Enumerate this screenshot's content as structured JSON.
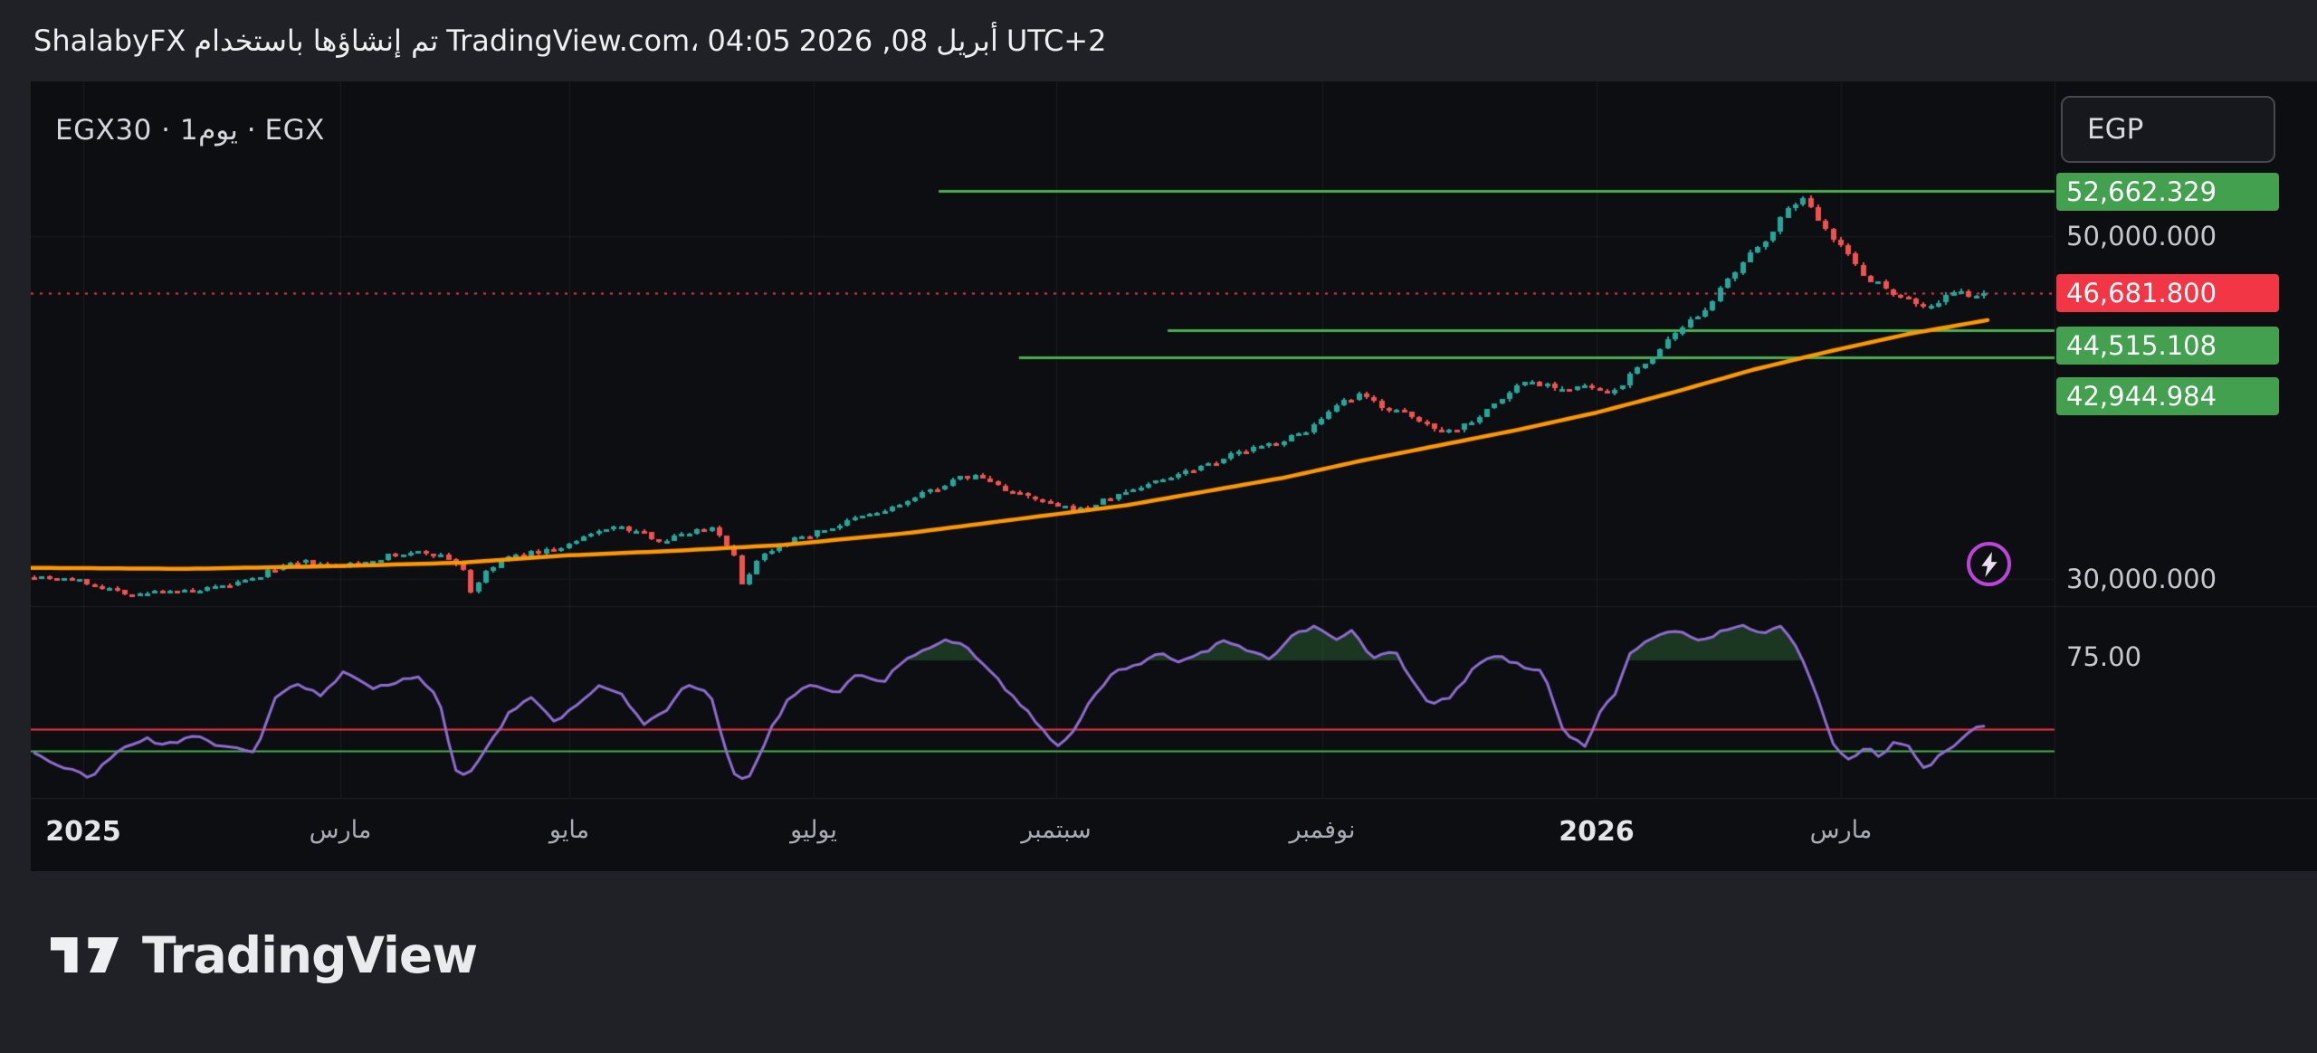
{
  "header": {
    "parts": [
      "ShalabyFX",
      "تم إنشاؤها باستخدام",
      "TradingView.com،",
      "04:05",
      "2026 ,08",
      "أبريل",
      "UTC+2"
    ]
  },
  "chart": {
    "symbol_line": "EGX30 · 1يوم · EGX",
    "currency_button": "EGP",
    "price_scale": {
      "resistance": "52,662.329",
      "fifty_k": "50,000.000",
      "last": "46,681.800",
      "support1": "44,515.108",
      "support2": "42,944.984",
      "thirty_k": "30,000.000",
      "rsi_level": "75.00"
    }
  },
  "footer": {
    "brand": "TradingView"
  },
  "colors": {
    "up": "#26a69a",
    "down": "#ef5350",
    "ma": "#ff9800",
    "level_green": "#4caf50",
    "last_price_red": "#f23645",
    "rsi_purple": "#8e6cd0",
    "rsi_red_line": "#f23645",
    "rsi_green_line": "#4caf50",
    "overbought_fill": "rgba(67,160,71,0.28)",
    "grid": "rgba(255,255,255,0.05)",
    "divider": "rgba(255,255,255,0.08)",
    "chart_bg": "#0d0e12"
  },
  "chart_data": {
    "type": "candlestick",
    "title": "EGX30 1D (EGX)",
    "currency": "EGP",
    "last_price": 46681.8,
    "num_candles": 260,
    "y_ticks_main": [
      {
        "value": 50000,
        "label": "50,000.000"
      },
      {
        "value": 30000,
        "label": "30,000.000"
      }
    ],
    "levels": [
      {
        "value": 52662.329,
        "label": "52,662.329",
        "start_f": 0.464
      },
      {
        "value": 44515.108,
        "label": "44,515.108",
        "start_f": 0.581
      },
      {
        "value": 42944.984,
        "label": "42,944.984",
        "start_f": 0.505
      }
    ],
    "x_ticks": [
      {
        "label": "2025",
        "f": 0.027,
        "major": true
      },
      {
        "label": "مارس",
        "f": 0.158
      },
      {
        "label": "مايو",
        "f": 0.275
      },
      {
        "label": "يوليو",
        "f": 0.4
      },
      {
        "label": "سبتمبر",
        "f": 0.524
      },
      {
        "label": "نوفمبر",
        "f": 0.66
      },
      {
        "label": "2026",
        "f": 0.8,
        "major": true
      },
      {
        "label": "مارس",
        "f": 0.925
      }
    ],
    "close_path": [
      [
        0,
        30170
      ],
      [
        0.018,
        30000
      ],
      [
        0.037,
        29480
      ],
      [
        0.052,
        29050
      ],
      [
        0.067,
        29400
      ],
      [
        0.082,
        29220
      ],
      [
        0.097,
        29570
      ],
      [
        0.113,
        30000
      ],
      [
        0.124,
        30690
      ],
      [
        0.139,
        30950
      ],
      [
        0.154,
        30690
      ],
      [
        0.169,
        31030
      ],
      [
        0.184,
        31380
      ],
      [
        0.199,
        31550
      ],
      [
        0.211,
        31290
      ],
      [
        0.22,
        30600
      ],
      [
        0.224,
        29220
      ],
      [
        0.23,
        30170
      ],
      [
        0.241,
        31210
      ],
      [
        0.256,
        31550
      ],
      [
        0.271,
        31810
      ],
      [
        0.286,
        32590
      ],
      [
        0.295,
        33100
      ],
      [
        0.309,
        32760
      ],
      [
        0.323,
        32240
      ],
      [
        0.335,
        32760
      ],
      [
        0.348,
        33020
      ],
      [
        0.358,
        31720
      ],
      [
        0.363,
        29650
      ],
      [
        0.371,
        31210
      ],
      [
        0.383,
        32070
      ],
      [
        0.396,
        32500
      ],
      [
        0.409,
        33020
      ],
      [
        0.422,
        33540
      ],
      [
        0.436,
        33970
      ],
      [
        0.449,
        34570
      ],
      [
        0.461,
        35260
      ],
      [
        0.475,
        35860
      ],
      [
        0.484,
        36030
      ],
      [
        0.496,
        35340
      ],
      [
        0.509,
        34740
      ],
      [
        0.522,
        34310
      ],
      [
        0.534,
        33970
      ],
      [
        0.547,
        34480
      ],
      [
        0.56,
        35090
      ],
      [
        0.573,
        35600
      ],
      [
        0.588,
        36210
      ],
      [
        0.603,
        36810
      ],
      [
        0.619,
        37410
      ],
      [
        0.634,
        37840
      ],
      [
        0.647,
        38360
      ],
      [
        0.66,
        39220
      ],
      [
        0.671,
        40260
      ],
      [
        0.68,
        40690
      ],
      [
        0.693,
        40000
      ],
      [
        0.703,
        39570
      ],
      [
        0.715,
        38960
      ],
      [
        0.727,
        38620
      ],
      [
        0.739,
        39390
      ],
      [
        0.751,
        40340
      ],
      [
        0.764,
        41550
      ],
      [
        0.776,
        41380
      ],
      [
        0.786,
        41030
      ],
      [
        0.798,
        41210
      ],
      [
        0.807,
        40690
      ],
      [
        0.816,
        41550
      ],
      [
        0.826,
        42590
      ],
      [
        0.836,
        43620
      ],
      [
        0.845,
        44480
      ],
      [
        0.854,
        45520
      ],
      [
        0.863,
        46550
      ],
      [
        0.872,
        47760
      ],
      [
        0.881,
        48970
      ],
      [
        0.89,
        50170
      ],
      [
        0.898,
        51210
      ],
      [
        0.905,
        52300
      ],
      [
        0.911,
        51640
      ],
      [
        0.917,
        50860
      ],
      [
        0.923,
        50000
      ],
      [
        0.93,
        48970
      ],
      [
        0.936,
        48100
      ],
      [
        0.943,
        47410
      ],
      [
        0.951,
        46900
      ],
      [
        0.958,
        46550
      ],
      [
        0.966,
        46030
      ],
      [
        0.973,
        45860
      ],
      [
        0.979,
        46380
      ],
      [
        0.985,
        46720
      ],
      [
        0.993,
        46550
      ],
      [
        1,
        46682
      ]
    ],
    "ma_path": [
      [
        0,
        30650
      ],
      [
        0.08,
        30590
      ],
      [
        0.16,
        30760
      ],
      [
        0.22,
        30950
      ],
      [
        0.275,
        31380
      ],
      [
        0.33,
        31650
      ],
      [
        0.384,
        31980
      ],
      [
        0.45,
        32700
      ],
      [
        0.513,
        33620
      ],
      [
        0.56,
        34300
      ],
      [
        0.6,
        35100
      ],
      [
        0.64,
        35900
      ],
      [
        0.68,
        36900
      ],
      [
        0.72,
        37800
      ],
      [
        0.76,
        38700
      ],
      [
        0.8,
        39700
      ],
      [
        0.84,
        40900
      ],
      [
        0.88,
        42200
      ],
      [
        0.92,
        43300
      ],
      [
        0.96,
        44300
      ],
      [
        1,
        45100
      ]
    ],
    "rsi": {
      "upper_band": 75,
      "upper_band_label": "75.00",
      "red_line": 37,
      "green_line": 25,
      "path": [
        [
          0,
          24
        ],
        [
          0.014,
          16
        ],
        [
          0.029,
          10
        ],
        [
          0.041,
          24
        ],
        [
          0.056,
          32
        ],
        [
          0.067,
          28
        ],
        [
          0.082,
          34
        ],
        [
          0.097,
          27
        ],
        [
          0.113,
          24
        ],
        [
          0.124,
          56
        ],
        [
          0.135,
          62
        ],
        [
          0.147,
          55
        ],
        [
          0.158,
          68
        ],
        [
          0.173,
          60
        ],
        [
          0.184,
          63
        ],
        [
          0.196,
          66
        ],
        [
          0.207,
          56
        ],
        [
          0.215,
          16
        ],
        [
          0.222,
          12
        ],
        [
          0.233,
          28
        ],
        [
          0.245,
          48
        ],
        [
          0.256,
          54
        ],
        [
          0.267,
          42
        ],
        [
          0.279,
          50
        ],
        [
          0.29,
          62
        ],
        [
          0.301,
          56
        ],
        [
          0.313,
          40
        ],
        [
          0.324,
          48
        ],
        [
          0.335,
          62
        ],
        [
          0.347,
          56
        ],
        [
          0.358,
          12
        ],
        [
          0.366,
          8
        ],
        [
          0.377,
          36
        ],
        [
          0.388,
          56
        ],
        [
          0.4,
          62
        ],
        [
          0.411,
          56
        ],
        [
          0.422,
          68
        ],
        [
          0.434,
          62
        ],
        [
          0.445,
          74
        ],
        [
          0.456,
          80
        ],
        [
          0.468,
          86
        ],
        [
          0.479,
          82
        ],
        [
          0.49,
          70
        ],
        [
          0.501,
          56
        ],
        [
          0.513,
          42
        ],
        [
          0.524,
          28
        ],
        [
          0.532,
          34
        ],
        [
          0.543,
          56
        ],
        [
          0.554,
          68
        ],
        [
          0.566,
          72
        ],
        [
          0.577,
          80
        ],
        [
          0.588,
          74
        ],
        [
          0.6,
          80
        ],
        [
          0.611,
          86
        ],
        [
          0.622,
          80
        ],
        [
          0.634,
          76
        ],
        [
          0.645,
          88
        ],
        [
          0.656,
          94
        ],
        [
          0.668,
          86
        ],
        [
          0.675,
          92
        ],
        [
          0.687,
          76
        ],
        [
          0.698,
          80
        ],
        [
          0.706,
          64
        ],
        [
          0.717,
          50
        ],
        [
          0.728,
          56
        ],
        [
          0.739,
          72
        ],
        [
          0.751,
          78
        ],
        [
          0.762,
          72
        ],
        [
          0.774,
          68
        ],
        [
          0.785,
          34
        ],
        [
          0.796,
          28
        ],
        [
          0.804,
          48
        ],
        [
          0.811,
          56
        ],
        [
          0.819,
          80
        ],
        [
          0.83,
          88
        ],
        [
          0.841,
          92
        ],
        [
          0.853,
          86
        ],
        [
          0.864,
          90
        ],
        [
          0.875,
          94
        ],
        [
          0.887,
          90
        ],
        [
          0.894,
          95
        ],
        [
          0.902,
          86
        ],
        [
          0.909,
          72
        ],
        [
          0.917,
          48
        ],
        [
          0.924,
          26
        ],
        [
          0.932,
          20
        ],
        [
          0.94,
          28
        ],
        [
          0.947,
          22
        ],
        [
          0.955,
          32
        ],
        [
          0.962,
          26
        ],
        [
          0.97,
          14
        ],
        [
          0.977,
          22
        ],
        [
          0.985,
          28
        ],
        [
          0.992,
          36
        ],
        [
          1,
          38
        ]
      ]
    }
  }
}
